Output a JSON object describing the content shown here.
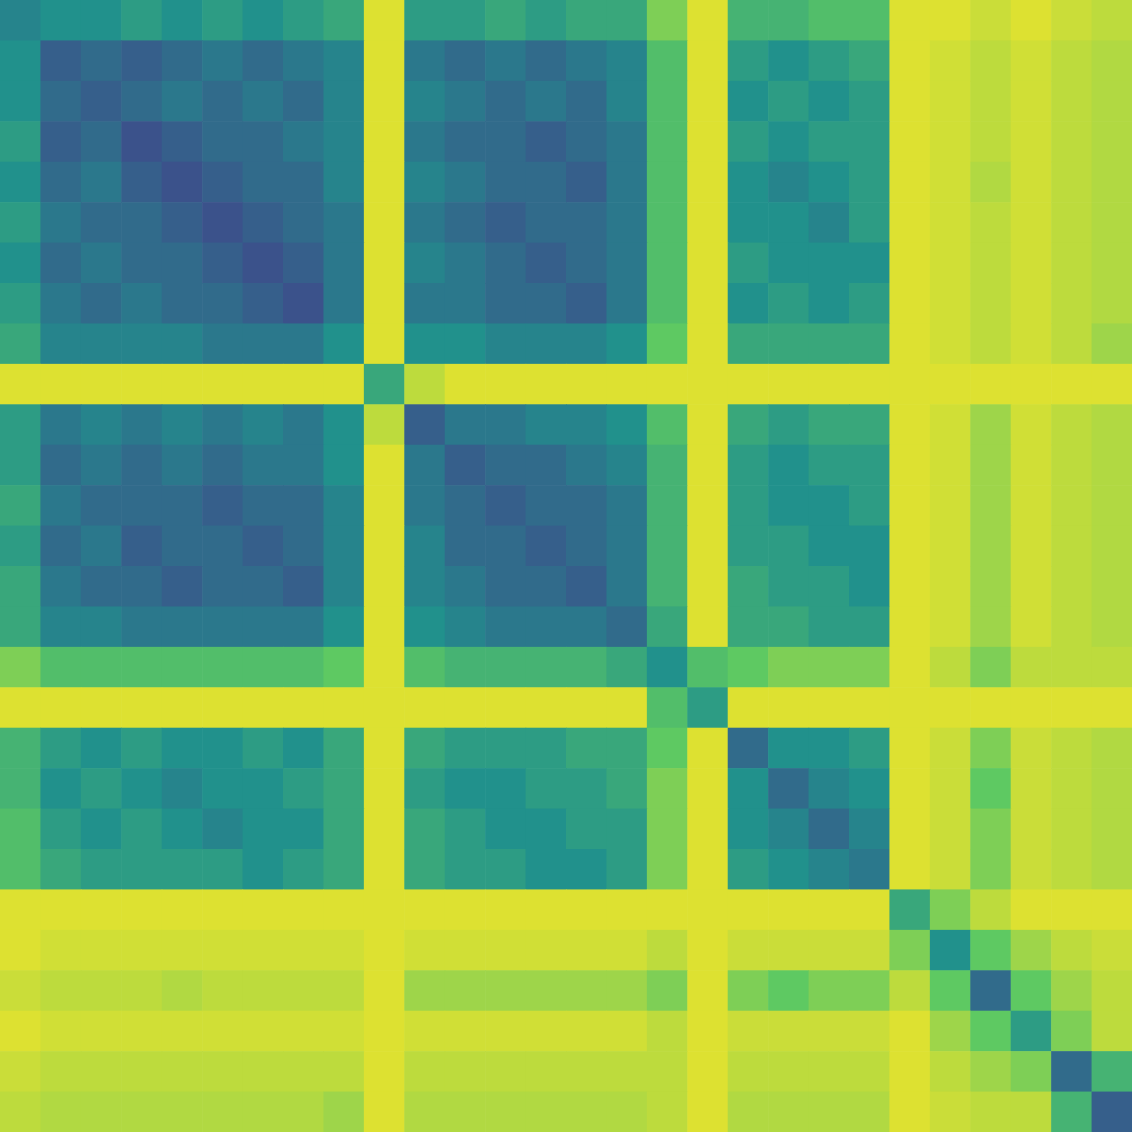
{
  "chart_data": {
    "type": "heatmap",
    "xlim": [
      0,
      28
    ],
    "ylim": [
      0,
      28
    ],
    "tick_labels": false,
    "color_range": [
      0,
      1
    ],
    "cells": [
      [
        0.45,
        0.5,
        0.5,
        0.55,
        0.5,
        0.55,
        0.5,
        0.55,
        0.6,
        0.95,
        0.55,
        0.55,
        0.6,
        0.55,
        0.6,
        0.6,
        0.8,
        0.95,
        0.65,
        0.65,
        0.7,
        0.7,
        0.95,
        0.95,
        0.92,
        0.95,
        0.92,
        0.9
      ],
      [
        0.5,
        0.3,
        0.35,
        0.3,
        0.35,
        0.4,
        0.35,
        0.4,
        0.45,
        0.95,
        0.4,
        0.35,
        0.4,
        0.35,
        0.4,
        0.45,
        0.7,
        0.95,
        0.55,
        0.5,
        0.55,
        0.6,
        0.95,
        0.93,
        0.9,
        0.93,
        0.9,
        0.88
      ],
      [
        0.5,
        0.35,
        0.3,
        0.35,
        0.4,
        0.35,
        0.4,
        0.35,
        0.45,
        0.95,
        0.45,
        0.4,
        0.35,
        0.4,
        0.35,
        0.45,
        0.7,
        0.95,
        0.5,
        0.55,
        0.5,
        0.55,
        0.95,
        0.93,
        0.9,
        0.93,
        0.9,
        0.88
      ],
      [
        0.55,
        0.3,
        0.35,
        0.25,
        0.3,
        0.35,
        0.35,
        0.4,
        0.45,
        0.95,
        0.4,
        0.35,
        0.35,
        0.3,
        0.35,
        0.4,
        0.7,
        0.95,
        0.55,
        0.5,
        0.55,
        0.55,
        0.95,
        0.93,
        0.9,
        0.93,
        0.9,
        0.88
      ],
      [
        0.5,
        0.35,
        0.4,
        0.3,
        0.25,
        0.3,
        0.35,
        0.35,
        0.45,
        0.95,
        0.45,
        0.4,
        0.35,
        0.35,
        0.3,
        0.4,
        0.7,
        0.95,
        0.5,
        0.45,
        0.5,
        0.55,
        0.95,
        0.93,
        0.88,
        0.93,
        0.9,
        0.88
      ],
      [
        0.55,
        0.4,
        0.35,
        0.35,
        0.3,
        0.25,
        0.3,
        0.35,
        0.4,
        0.95,
        0.4,
        0.35,
        0.3,
        0.35,
        0.35,
        0.4,
        0.7,
        0.95,
        0.5,
        0.5,
        0.45,
        0.55,
        0.95,
        0.93,
        0.9,
        0.93,
        0.9,
        0.88
      ],
      [
        0.5,
        0.35,
        0.4,
        0.35,
        0.35,
        0.3,
        0.25,
        0.3,
        0.4,
        0.95,
        0.45,
        0.4,
        0.35,
        0.3,
        0.35,
        0.4,
        0.7,
        0.95,
        0.55,
        0.5,
        0.5,
        0.5,
        0.95,
        0.93,
        0.9,
        0.93,
        0.9,
        0.88
      ],
      [
        0.55,
        0.4,
        0.35,
        0.4,
        0.35,
        0.35,
        0.3,
        0.25,
        0.4,
        0.95,
        0.4,
        0.4,
        0.35,
        0.35,
        0.3,
        0.4,
        0.7,
        0.95,
        0.5,
        0.55,
        0.5,
        0.55,
        0.95,
        0.93,
        0.9,
        0.93,
        0.9,
        0.88
      ],
      [
        0.6,
        0.45,
        0.45,
        0.45,
        0.45,
        0.4,
        0.4,
        0.4,
        0.5,
        0.95,
        0.5,
        0.5,
        0.45,
        0.45,
        0.45,
        0.5,
        0.75,
        0.95,
        0.6,
        0.6,
        0.6,
        0.6,
        0.95,
        0.93,
        0.9,
        0.93,
        0.9,
        0.85
      ],
      [
        0.95,
        0.95,
        0.95,
        0.95,
        0.95,
        0.95,
        0.95,
        0.95,
        0.95,
        0.6,
        0.9,
        0.95,
        0.95,
        0.95,
        0.95,
        0.95,
        0.95,
        0.95,
        0.95,
        0.95,
        0.95,
        0.95,
        0.95,
        0.95,
        0.95,
        0.95,
        0.95,
        0.95
      ],
      [
        0.55,
        0.4,
        0.45,
        0.4,
        0.45,
        0.4,
        0.45,
        0.4,
        0.5,
        0.9,
        0.3,
        0.4,
        0.4,
        0.45,
        0.45,
        0.5,
        0.7,
        0.95,
        0.6,
        0.55,
        0.6,
        0.6,
        0.95,
        0.93,
        0.85,
        0.93,
        0.9,
        0.88
      ],
      [
        0.55,
        0.35,
        0.4,
        0.35,
        0.4,
        0.35,
        0.4,
        0.4,
        0.5,
        0.95,
        0.4,
        0.3,
        0.35,
        0.35,
        0.4,
        0.45,
        0.65,
        0.95,
        0.55,
        0.5,
        0.55,
        0.55,
        0.95,
        0.93,
        0.85,
        0.93,
        0.9,
        0.88
      ],
      [
        0.6,
        0.4,
        0.35,
        0.35,
        0.35,
        0.3,
        0.35,
        0.35,
        0.45,
        0.95,
        0.4,
        0.35,
        0.3,
        0.35,
        0.35,
        0.4,
        0.65,
        0.95,
        0.55,
        0.5,
        0.5,
        0.55,
        0.95,
        0.93,
        0.85,
        0.93,
        0.9,
        0.88
      ],
      [
        0.55,
        0.35,
        0.4,
        0.3,
        0.35,
        0.35,
        0.3,
        0.35,
        0.45,
        0.95,
        0.45,
        0.35,
        0.35,
        0.3,
        0.35,
        0.4,
        0.65,
        0.95,
        0.55,
        0.55,
        0.5,
        0.5,
        0.95,
        0.93,
        0.85,
        0.93,
        0.9,
        0.88
      ],
      [
        0.6,
        0.4,
        0.35,
        0.35,
        0.3,
        0.35,
        0.35,
        0.3,
        0.45,
        0.95,
        0.45,
        0.4,
        0.35,
        0.35,
        0.3,
        0.4,
        0.65,
        0.95,
        0.6,
        0.55,
        0.55,
        0.5,
        0.95,
        0.93,
        0.85,
        0.93,
        0.9,
        0.88
      ],
      [
        0.6,
        0.45,
        0.45,
        0.4,
        0.4,
        0.4,
        0.4,
        0.4,
        0.5,
        0.95,
        0.5,
        0.45,
        0.4,
        0.4,
        0.4,
        0.35,
        0.6,
        0.95,
        0.6,
        0.6,
        0.55,
        0.55,
        0.95,
        0.93,
        0.85,
        0.93,
        0.9,
        0.88
      ],
      [
        0.8,
        0.7,
        0.7,
        0.7,
        0.7,
        0.7,
        0.7,
        0.7,
        0.75,
        0.95,
        0.7,
        0.65,
        0.65,
        0.65,
        0.65,
        0.6,
        0.5,
        0.7,
        0.75,
        0.8,
        0.8,
        0.8,
        0.95,
        0.9,
        0.8,
        0.9,
        0.9,
        0.9
      ],
      [
        0.95,
        0.95,
        0.95,
        0.95,
        0.95,
        0.95,
        0.95,
        0.95,
        0.95,
        0.95,
        0.95,
        0.95,
        0.95,
        0.95,
        0.95,
        0.95,
        0.7,
        0.55,
        0.95,
        0.95,
        0.95,
        0.95,
        0.95,
        0.95,
        0.95,
        0.95,
        0.95,
        0.95
      ],
      [
        0.65,
        0.55,
        0.5,
        0.55,
        0.5,
        0.5,
        0.55,
        0.5,
        0.6,
        0.95,
        0.6,
        0.55,
        0.55,
        0.55,
        0.6,
        0.6,
        0.75,
        0.95,
        0.35,
        0.5,
        0.5,
        0.55,
        0.95,
        0.92,
        0.8,
        0.92,
        0.9,
        0.88
      ],
      [
        0.65,
        0.5,
        0.55,
        0.5,
        0.45,
        0.5,
        0.5,
        0.55,
        0.6,
        0.95,
        0.55,
        0.5,
        0.5,
        0.55,
        0.55,
        0.6,
        0.8,
        0.95,
        0.5,
        0.35,
        0.45,
        0.5,
        0.95,
        0.92,
        0.75,
        0.92,
        0.9,
        0.88
      ],
      [
        0.7,
        0.55,
        0.5,
        0.55,
        0.5,
        0.45,
        0.5,
        0.5,
        0.6,
        0.95,
        0.6,
        0.55,
        0.5,
        0.5,
        0.55,
        0.55,
        0.8,
        0.95,
        0.5,
        0.45,
        0.35,
        0.45,
        0.95,
        0.92,
        0.8,
        0.92,
        0.9,
        0.88
      ],
      [
        0.7,
        0.6,
        0.55,
        0.55,
        0.55,
        0.55,
        0.5,
        0.55,
        0.6,
        0.95,
        0.6,
        0.55,
        0.55,
        0.5,
        0.5,
        0.55,
        0.8,
        0.95,
        0.55,
        0.5,
        0.45,
        0.4,
        0.95,
        0.92,
        0.8,
        0.92,
        0.9,
        0.88
      ],
      [
        0.95,
        0.95,
        0.95,
        0.95,
        0.95,
        0.95,
        0.95,
        0.95,
        0.95,
        0.95,
        0.95,
        0.95,
        0.95,
        0.95,
        0.95,
        0.95,
        0.95,
        0.95,
        0.95,
        0.95,
        0.95,
        0.95,
        0.6,
        0.8,
        0.9,
        0.95,
        0.95,
        0.95
      ],
      [
        0.95,
        0.93,
        0.93,
        0.93,
        0.93,
        0.93,
        0.93,
        0.93,
        0.93,
        0.95,
        0.93,
        0.93,
        0.93,
        0.93,
        0.93,
        0.93,
        0.9,
        0.95,
        0.92,
        0.92,
        0.92,
        0.92,
        0.8,
        0.5,
        0.75,
        0.85,
        0.9,
        0.92
      ],
      [
        0.92,
        0.9,
        0.9,
        0.9,
        0.88,
        0.9,
        0.9,
        0.9,
        0.9,
        0.95,
        0.85,
        0.85,
        0.85,
        0.85,
        0.85,
        0.85,
        0.8,
        0.95,
        0.8,
        0.75,
        0.8,
        0.8,
        0.9,
        0.75,
        0.35,
        0.75,
        0.85,
        0.9
      ],
      [
        0.95,
        0.93,
        0.93,
        0.93,
        0.93,
        0.93,
        0.93,
        0.93,
        0.93,
        0.95,
        0.93,
        0.93,
        0.93,
        0.93,
        0.93,
        0.93,
        0.9,
        0.95,
        0.92,
        0.92,
        0.92,
        0.92,
        0.95,
        0.85,
        0.75,
        0.55,
        0.8,
        0.9
      ],
      [
        0.92,
        0.9,
        0.9,
        0.9,
        0.9,
        0.9,
        0.9,
        0.9,
        0.9,
        0.95,
        0.9,
        0.9,
        0.9,
        0.9,
        0.9,
        0.9,
        0.9,
        0.95,
        0.9,
        0.9,
        0.9,
        0.9,
        0.95,
        0.9,
        0.85,
        0.8,
        0.35,
        0.65
      ],
      [
        0.9,
        0.88,
        0.88,
        0.88,
        0.88,
        0.88,
        0.88,
        0.88,
        0.85,
        0.95,
        0.88,
        0.88,
        0.88,
        0.88,
        0.88,
        0.88,
        0.9,
        0.95,
        0.88,
        0.88,
        0.88,
        0.88,
        0.95,
        0.92,
        0.9,
        0.9,
        0.65,
        0.3
      ]
    ]
  }
}
